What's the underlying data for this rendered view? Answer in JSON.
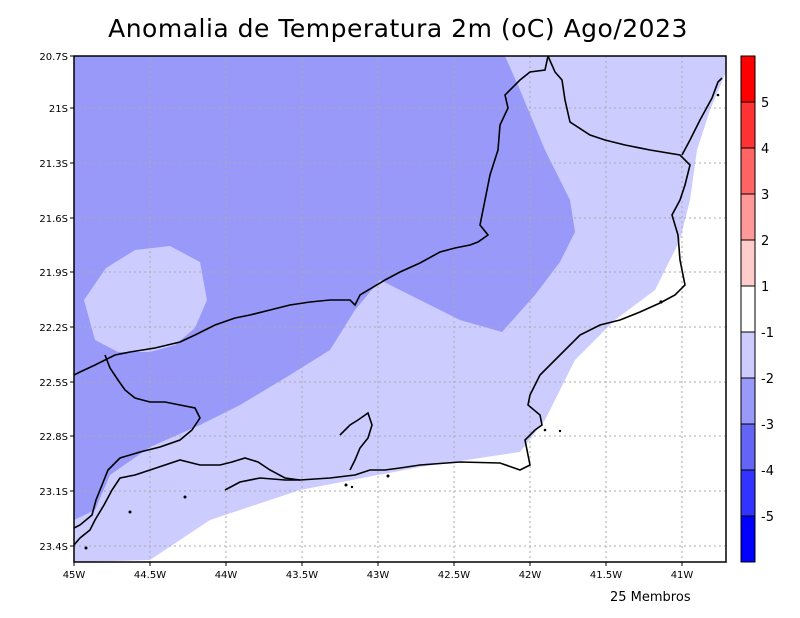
{
  "title": "Anomalia de Temperatura 2m (oC) Ago/2023",
  "footer_note": "25 Membros",
  "map": {
    "lat_labels": [
      "20.7S",
      "21S",
      "21.3S",
      "21.6S",
      "21.9S",
      "22.2S",
      "22.5S",
      "22.8S",
      "23.1S",
      "23.4S"
    ],
    "lon_labels": [
      "45W",
      "44.5W",
      "44W",
      "43.5W",
      "43W",
      "42.5W",
      "42W",
      "41.5W",
      "41W"
    ],
    "gridlines": true
  },
  "colorbar": {
    "colors": [
      "#0000ff",
      "#3333ff",
      "#6565f5",
      "#9999fa",
      "#ccccff",
      "#ffffff",
      "#ffcccc",
      "#ff9999",
      "#ff6565",
      "#ff3333",
      "#ff0000"
    ],
    "labels": [
      "-5",
      "-4",
      "-3",
      "-2",
      "-1",
      "1",
      "2",
      "3",
      "4",
      "5"
    ],
    "palette_semantics": "blue = negative anomaly, white = neutral, red = positive anomaly"
  },
  "fill_colors": {
    "level_minus2_to_minus1": "#ccccff",
    "level_minus3_to_minus2": "#9999fa",
    "background_neutral": "#ffffff"
  }
}
